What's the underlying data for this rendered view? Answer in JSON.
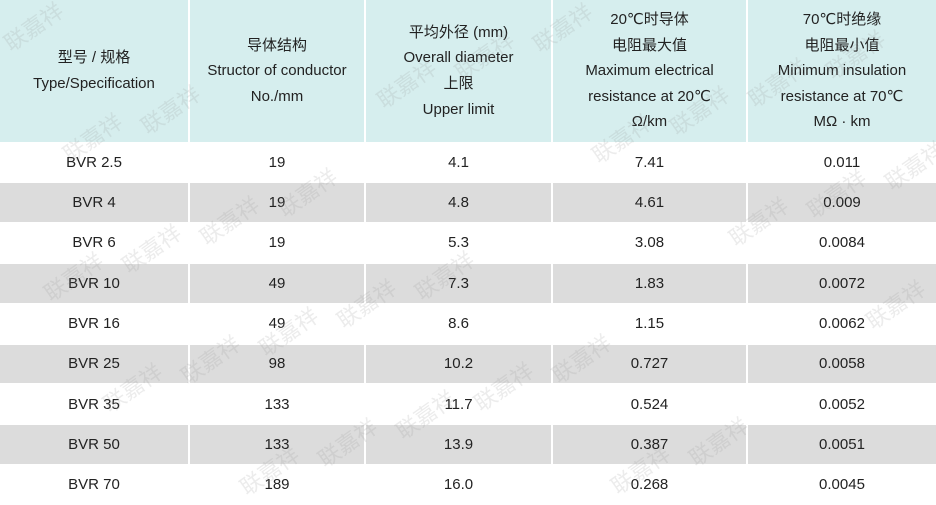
{
  "watermark": "联嘉祥",
  "table": {
    "header": [
      [
        "型号 / 规格",
        "Type/Specification"
      ],
      [
        "导体结构",
        "Structor of conductor",
        "No./mm"
      ],
      [
        "平均外径 (mm)",
        "Overall diameter",
        "上限",
        "Upper limit"
      ],
      [
        "20℃时导体",
        "电阻最大值",
        "Maximum electrical",
        "resistance at 20℃",
        "Ω/km"
      ],
      [
        "70℃时绝缘",
        "电阻最小值",
        "Minimum insulation",
        "resistance at 70℃",
        "MΩ · km"
      ]
    ],
    "rows": [
      [
        "BVR 2.5",
        "19",
        "4.1",
        "7.41",
        "0.011"
      ],
      [
        "BVR 4",
        "19",
        "4.8",
        "4.61",
        "0.009"
      ],
      [
        "BVR 6",
        "19",
        "5.3",
        "3.08",
        "0.0084"
      ],
      [
        "BVR 10",
        "49",
        "7.3",
        "1.83",
        "0.0072"
      ],
      [
        "BVR 16",
        "49",
        "8.6",
        "1.15",
        "0.0062"
      ],
      [
        "BVR 25",
        "98",
        "10.2",
        "0.727",
        "0.0058"
      ],
      [
        "BVR 35",
        "133",
        "11.7",
        "0.524",
        "0.0052"
      ],
      [
        "BVR 50",
        "133",
        "13.9",
        "0.387",
        "0.0051"
      ],
      [
        "BVR 70",
        "189",
        "16.0",
        "0.268",
        "0.0045"
      ]
    ]
  }
}
